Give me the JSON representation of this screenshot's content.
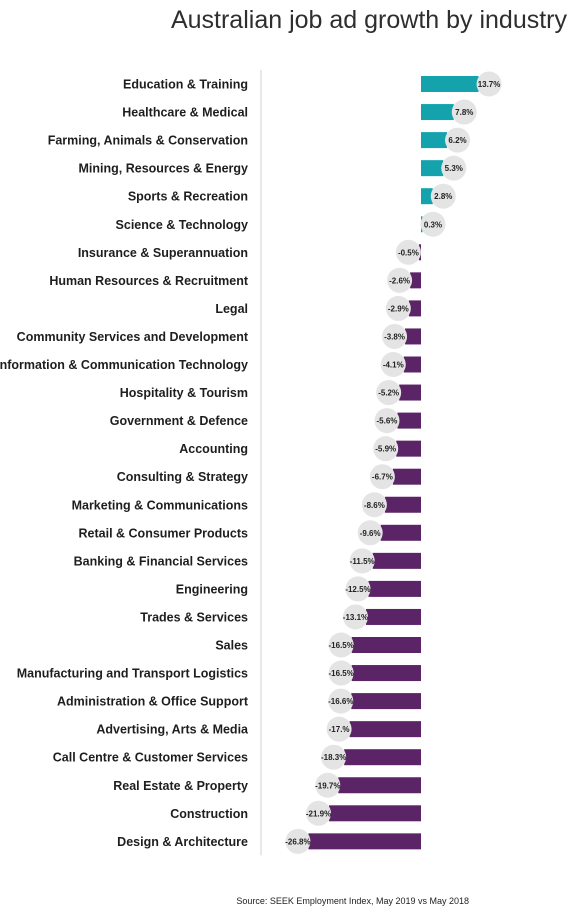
{
  "chart_data": {
    "type": "bar",
    "orientation": "horizontal",
    "title": "Australian job ad growth by industry",
    "source": "Source: SEEK Employment Index, May 2019 vs May 2018",
    "xlim": [
      -26.8,
      13.7
    ],
    "grid": false,
    "legend": "none",
    "categories": [
      "Education & Training",
      "Healthcare & Medical",
      "Farming, Animals & Conservation",
      "Mining, Resources & Energy",
      "Sports & Recreation",
      "Science & Technology",
      "Insurance & Superannuation",
      "Human Resources & Recruitment",
      "Legal",
      "Community Services and Development",
      "Information & Communication Technology",
      "Hospitality & Tourism",
      "Government & Defence",
      "Accounting",
      "Consulting & Strategy",
      "Marketing & Communications",
      "Retail & Consumer Products",
      "Banking & Financial Services",
      "Engineering",
      "Trades & Services",
      "Sales",
      "Manufacturing and Transport Logistics",
      "Administration & Office Support",
      "Advertising, Arts & Media",
      "Call Centre & Customer Services",
      "Real Estate & Property",
      "Construction",
      "Design & Architecture"
    ],
    "values": [
      13.7,
      7.8,
      6.2,
      5.3,
      2.8,
      0.3,
      -0.5,
      -2.6,
      -2.9,
      -3.8,
      -4.1,
      -5.2,
      -5.6,
      -5.9,
      -6.7,
      -8.6,
      -9.6,
      -11.5,
      -12.5,
      -13.1,
      -16.5,
      -16.5,
      -16.6,
      -17.0,
      -18.3,
      -19.7,
      -21.9,
      -26.8
    ],
    "value_labels": [
      "13.7%",
      "7.8%",
      "6.2%",
      "5.3%",
      "2.8%",
      "0.3%",
      "-0.5%",
      "-2.6%",
      "-2.9%",
      "-3.8%",
      "-4.1%",
      "-5.2%",
      "-5.6%",
      "-5.9%",
      "-6.7%",
      "-8.6%",
      "-9.6%",
      "-11.5%",
      "-12.5%",
      "-13.1%",
      "-16.5%",
      "-16.5%",
      "-16.6%",
      "-17.%",
      "-18.3%",
      "-19.7%",
      "-21.9%",
      "-26.8%"
    ],
    "colors": {
      "positive": "#14a3ad",
      "negative": "#5b2466",
      "label_bubble": "#e4e4e4",
      "axis": "#d9d9d9"
    }
  }
}
